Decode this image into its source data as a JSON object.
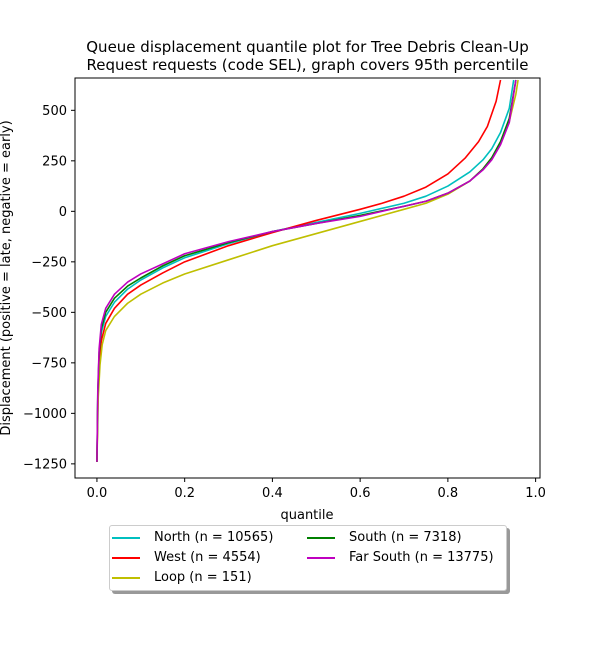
{
  "chart_data": {
    "type": "line",
    "title_lines": [
      "Queue displacement quantile plot for Tree Debris Clean-Up",
      "Request  requests (code SEL), graph covers 95th percentile"
    ],
    "xlabel": "quantile",
    "ylabel": "Displacement (positive = late, negative = early)",
    "xlim": [
      -0.05,
      1.01
    ],
    "ylim": [
      -1320,
      660
    ],
    "x_ticks": [
      0.0,
      0.2,
      0.4,
      0.6,
      0.8,
      1.0
    ],
    "x_tick_labels": [
      "0.0",
      "0.2",
      "0.4",
      "0.6",
      "0.8",
      "1.0"
    ],
    "y_ticks": [
      -1250,
      -1000,
      -750,
      -500,
      -250,
      0,
      250,
      500
    ],
    "y_tick_labels": [
      "−1250",
      "−1000",
      "−750",
      "−500",
      "−250",
      "0",
      "250",
      "500"
    ],
    "grid": false,
    "legend_position": "below",
    "series": [
      {
        "name": "North (n = 10565)",
        "color": "#00bfbf",
        "points": [
          [
            0,
            -1240
          ],
          [
            0.002,
            -920
          ],
          [
            0.005,
            -720
          ],
          [
            0.01,
            -600
          ],
          [
            0.02,
            -520
          ],
          [
            0.04,
            -450
          ],
          [
            0.07,
            -385
          ],
          [
            0.1,
            -340
          ],
          [
            0.15,
            -280
          ],
          [
            0.2,
            -230
          ],
          [
            0.3,
            -160
          ],
          [
            0.4,
            -100
          ],
          [
            0.5,
            -55
          ],
          [
            0.6,
            -10
          ],
          [
            0.7,
            40
          ],
          [
            0.75,
            75
          ],
          [
            0.8,
            125
          ],
          [
            0.85,
            195
          ],
          [
            0.88,
            255
          ],
          [
            0.9,
            310
          ],
          [
            0.92,
            390
          ],
          [
            0.94,
            510
          ],
          [
            0.95,
            650
          ]
        ]
      },
      {
        "name": "West (n = 4554)",
        "color": "#ff0000",
        "points": [
          [
            0,
            -1240
          ],
          [
            0.002,
            -960
          ],
          [
            0.005,
            -760
          ],
          [
            0.01,
            -640
          ],
          [
            0.02,
            -555
          ],
          [
            0.04,
            -480
          ],
          [
            0.07,
            -410
          ],
          [
            0.1,
            -365
          ],
          [
            0.15,
            -305
          ],
          [
            0.2,
            -250
          ],
          [
            0.3,
            -170
          ],
          [
            0.4,
            -105
          ],
          [
            0.5,
            -45
          ],
          [
            0.6,
            10
          ],
          [
            0.65,
            40
          ],
          [
            0.7,
            75
          ],
          [
            0.75,
            120
          ],
          [
            0.8,
            185
          ],
          [
            0.84,
            265
          ],
          [
            0.87,
            345
          ],
          [
            0.89,
            420
          ],
          [
            0.91,
            545
          ],
          [
            0.92,
            650
          ]
        ]
      },
      {
        "name": "Loop (n = 151)",
        "color": "#bfbf00",
        "points": [
          [
            0,
            -1240
          ],
          [
            0.003,
            -920
          ],
          [
            0.007,
            -760
          ],
          [
            0.012,
            -660
          ],
          [
            0.02,
            -590
          ],
          [
            0.04,
            -520
          ],
          [
            0.07,
            -455
          ],
          [
            0.1,
            -410
          ],
          [
            0.15,
            -355
          ],
          [
            0.2,
            -310
          ],
          [
            0.3,
            -240
          ],
          [
            0.4,
            -170
          ],
          [
            0.5,
            -110
          ],
          [
            0.6,
            -50
          ],
          [
            0.65,
            -20
          ],
          [
            0.7,
            10
          ],
          [
            0.75,
            40
          ],
          [
            0.8,
            85
          ],
          [
            0.85,
            150
          ],
          [
            0.88,
            210
          ],
          [
            0.9,
            265
          ],
          [
            0.92,
            335
          ],
          [
            0.94,
            445
          ],
          [
            0.955,
            580
          ],
          [
            0.96,
            650
          ]
        ]
      },
      {
        "name": "South (n = 7318)",
        "color": "#008000",
        "points": [
          [
            0,
            -1240
          ],
          [
            0.002,
            -900
          ],
          [
            0.005,
            -700
          ],
          [
            0.01,
            -580
          ],
          [
            0.02,
            -500
          ],
          [
            0.04,
            -430
          ],
          [
            0.07,
            -370
          ],
          [
            0.1,
            -330
          ],
          [
            0.15,
            -270
          ],
          [
            0.2,
            -220
          ],
          [
            0.3,
            -155
          ],
          [
            0.4,
            -100
          ],
          [
            0.5,
            -60
          ],
          [
            0.6,
            -20
          ],
          [
            0.7,
            25
          ],
          [
            0.75,
            50
          ],
          [
            0.8,
            90
          ],
          [
            0.85,
            150
          ],
          [
            0.88,
            210
          ],
          [
            0.9,
            265
          ],
          [
            0.92,
            345
          ],
          [
            0.94,
            460
          ],
          [
            0.955,
            650
          ]
        ]
      },
      {
        "name": "Far South (n = 13775)",
        "color": "#bf00bf",
        "points": [
          [
            0,
            -1240
          ],
          [
            0.002,
            -880
          ],
          [
            0.005,
            -680
          ],
          [
            0.01,
            -560
          ],
          [
            0.02,
            -480
          ],
          [
            0.04,
            -410
          ],
          [
            0.07,
            -350
          ],
          [
            0.1,
            -310
          ],
          [
            0.15,
            -260
          ],
          [
            0.2,
            -210
          ],
          [
            0.3,
            -150
          ],
          [
            0.4,
            -100
          ],
          [
            0.5,
            -60
          ],
          [
            0.6,
            -25
          ],
          [
            0.7,
            25
          ],
          [
            0.75,
            50
          ],
          [
            0.8,
            90
          ],
          [
            0.85,
            150
          ],
          [
            0.88,
            205
          ],
          [
            0.9,
            255
          ],
          [
            0.92,
            330
          ],
          [
            0.94,
            440
          ],
          [
            0.955,
            650
          ]
        ]
      }
    ]
  }
}
